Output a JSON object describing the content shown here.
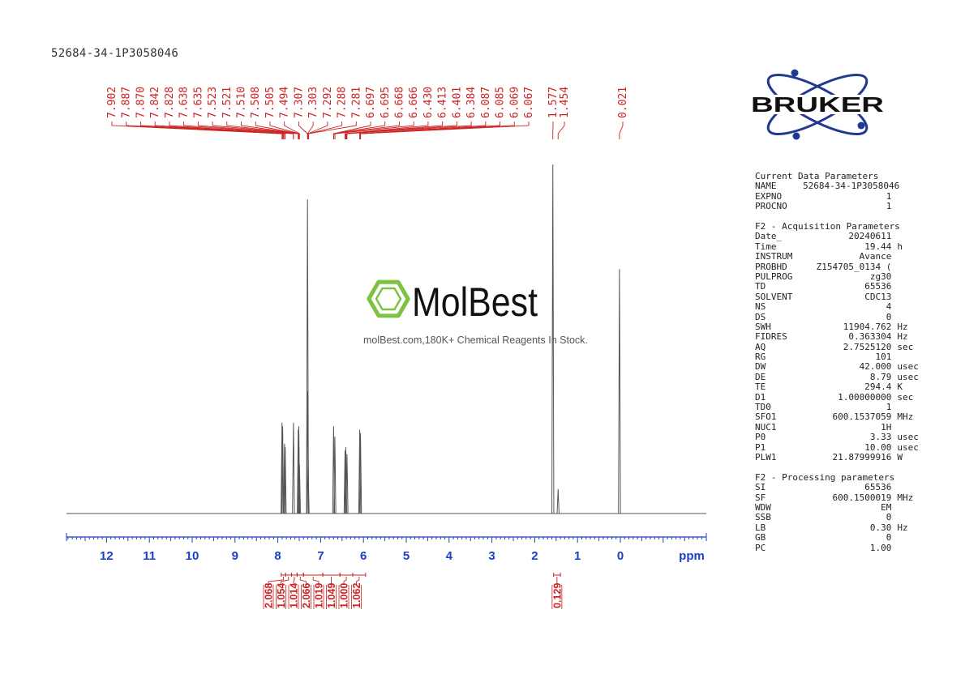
{
  "sample_title": "52684-34-1P3058046",
  "watermark": {
    "brand": "MolBest",
    "tagline": "molBest.com,180K+ Chemical Reagents In Stock."
  },
  "logo": {
    "text": "BRUKER"
  },
  "colors": {
    "spectrum": "#555555",
    "annotation": "#cc2222",
    "axis": "#1a3fc8",
    "logo": "#1f3a8f",
    "watermark": "#7dc242"
  },
  "chart_data": {
    "type": "line",
    "title": "",
    "xlabel": "ppm",
    "xlim": [
      13.0,
      -2.0
    ],
    "x_direction": "reversed",
    "x_ticks": [
      "12",
      "11",
      "10",
      "9",
      "8",
      "7",
      "6",
      "5",
      "4",
      "3",
      "2",
      "1",
      "0"
    ],
    "x_tick_values": [
      12,
      11,
      10,
      9,
      8,
      7,
      6,
      5,
      4,
      3,
      2,
      1,
      0
    ],
    "series": [
      {
        "peaks": [
          {
            "ppm": 7.902,
            "height": 0.26
          },
          {
            "ppm": 7.887,
            "height": 0.25
          },
          {
            "ppm": 7.842,
            "height": 0.2
          },
          {
            "ppm": 7.828,
            "height": 0.19
          },
          {
            "ppm": 7.635,
            "height": 0.26
          },
          {
            "ppm": 7.523,
            "height": 0.24
          },
          {
            "ppm": 7.51,
            "height": 0.25
          },
          {
            "ppm": 7.494,
            "height": 0.14
          },
          {
            "ppm": 7.307,
            "height": 0.9
          },
          {
            "ppm": 7.303,
            "height": 0.35
          },
          {
            "ppm": 7.292,
            "height": 0.14
          },
          {
            "ppm": 6.697,
            "height": 0.25
          },
          {
            "ppm": 6.668,
            "height": 0.22
          },
          {
            "ppm": 6.43,
            "height": 0.18
          },
          {
            "ppm": 6.413,
            "height": 0.19
          },
          {
            "ppm": 6.384,
            "height": 0.17
          },
          {
            "ppm": 6.087,
            "height": 0.24
          },
          {
            "ppm": 6.069,
            "height": 0.23
          },
          {
            "ppm": 1.577,
            "height": 1.0
          },
          {
            "ppm": 1.454,
            "height": 0.07
          },
          {
            "ppm": 0.021,
            "height": 0.7
          }
        ]
      }
    ],
    "peak_labels": [
      "7.902",
      "7.887",
      "7.870",
      "7.842",
      "7.828",
      "7.638",
      "7.635",
      "7.523",
      "7.521",
      "7.510",
      "7.508",
      "7.505",
      "7.494",
      "7.307",
      "7.303",
      "7.292",
      "7.288",
      "7.281",
      "6.697",
      "6.695",
      "6.668",
      "6.666",
      "6.430",
      "6.413",
      "6.401",
      "6.384",
      "6.087",
      "6.085",
      "6.069",
      "6.067",
      "1.577",
      "1.454",
      "0.021"
    ],
    "peak_label_ppm": [
      7.902,
      7.887,
      7.87,
      7.842,
      7.828,
      7.638,
      7.635,
      7.523,
      7.521,
      7.51,
      7.508,
      7.505,
      7.494,
      7.307,
      7.303,
      7.292,
      7.288,
      7.281,
      6.697,
      6.695,
      6.668,
      6.666,
      6.43,
      6.413,
      6.401,
      6.384,
      6.087,
      6.085,
      6.069,
      6.067,
      1.577,
      1.454,
      0.021
    ],
    "integrals": [
      {
        "value": "2.068",
        "from": 7.92,
        "to": 7.82
      },
      {
        "value": "1.054",
        "from": 7.82,
        "to": 7.68
      },
      {
        "value": "1.014",
        "from": 7.68,
        "to": 7.55
      },
      {
        "value": "2.066",
        "from": 7.55,
        "to": 7.4
      },
      {
        "value": "1.019",
        "from": 7.4,
        "to": 6.95
      },
      {
        "value": "1.049",
        "from": 6.95,
        "to": 6.55
      },
      {
        "value": "1.000",
        "from": 6.55,
        "to": 6.25
      },
      {
        "value": "1.062",
        "from": 6.25,
        "to": 5.95
      },
      {
        "value": "0.129",
        "from": 1.56,
        "to": 1.4
      }
    ]
  },
  "parameters": {
    "current": {
      "title": "Current Data Parameters",
      "rows": [
        {
          "label": "NAME",
          "value": "52684-34-1P3058046",
          "unit": ""
        },
        {
          "label": "EXPNO",
          "value": "1",
          "unit": ""
        },
        {
          "label": "PROCNO",
          "value": "1",
          "unit": ""
        }
      ]
    },
    "acquisition": {
      "title": "F2 - Acquisition Parameters",
      "rows": [
        {
          "label": "Date_",
          "value": "20240611",
          "unit": ""
        },
        {
          "label": "Time",
          "value": "19.44",
          "unit": "h"
        },
        {
          "label": "INSTRUM",
          "value": "Avance",
          "unit": ""
        },
        {
          "label": "PROBHD",
          "value": "Z154705_0134 (",
          "unit": ""
        },
        {
          "label": "PULPROG",
          "value": "zg30",
          "unit": ""
        },
        {
          "label": "TD",
          "value": "65536",
          "unit": ""
        },
        {
          "label": "SOLVENT",
          "value": "CDC13",
          "unit": ""
        },
        {
          "label": "NS",
          "value": "4",
          "unit": ""
        },
        {
          "label": "DS",
          "value": "0",
          "unit": ""
        },
        {
          "label": "SWH",
          "value": "11904.762",
          "unit": "Hz"
        },
        {
          "label": "FIDRES",
          "value": "0.363304",
          "unit": "Hz"
        },
        {
          "label": "AQ",
          "value": "2.7525120",
          "unit": "sec"
        },
        {
          "label": "RG",
          "value": "101",
          "unit": ""
        },
        {
          "label": "DW",
          "value": "42.000",
          "unit": "usec"
        },
        {
          "label": "DE",
          "value": "8.79",
          "unit": "usec"
        },
        {
          "label": "TE",
          "value": "294.4",
          "unit": "K"
        },
        {
          "label": "D1",
          "value": "1.00000000",
          "unit": "sec"
        },
        {
          "label": "TD0",
          "value": "1",
          "unit": ""
        },
        {
          "label": "SFO1",
          "value": "600.1537059",
          "unit": "MHz"
        },
        {
          "label": "NUC1",
          "value": "1H",
          "unit": ""
        },
        {
          "label": "P0",
          "value": "3.33",
          "unit": "usec"
        },
        {
          "label": "P1",
          "value": "10.00",
          "unit": "usec"
        },
        {
          "label": "PLW1",
          "value": "21.87999916",
          "unit": "W"
        }
      ]
    },
    "processing": {
      "title": "F2 - Processing parameters",
      "rows": [
        {
          "label": "SI",
          "value": "65536",
          "unit": ""
        },
        {
          "label": "SF",
          "value": "600.1500019",
          "unit": "MHz"
        },
        {
          "label": "WDW",
          "value": "EM",
          "unit": ""
        },
        {
          "label": "SSB",
          "value": "0",
          "unit": ""
        },
        {
          "label": "LB",
          "value": "0.30",
          "unit": "Hz"
        },
        {
          "label": "GB",
          "value": "0",
          "unit": ""
        },
        {
          "label": "PC",
          "value": "1.00",
          "unit": ""
        }
      ]
    }
  }
}
